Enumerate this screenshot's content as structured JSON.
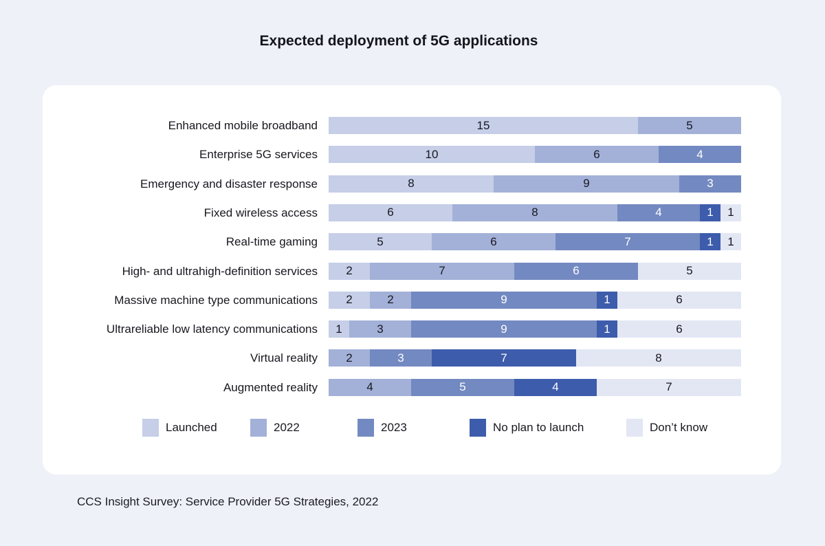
{
  "page": {
    "title": "Expected deployment of 5G applications",
    "source": "CCS Insight Survey: Service Provider 5G Strategies, 2022"
  },
  "colors": {
    "background": "#eff1f8",
    "card": "#ffffff",
    "text": "#17171f"
  },
  "chart_data": {
    "type": "bar",
    "stacked": true,
    "orientation": "horizontal",
    "title": "Expected deployment of 5G applications",
    "x_max": 20,
    "grid": false,
    "legend_position": "bottom",
    "categories": [
      "Enhanced mobile broadband",
      "Enterprise 5G services",
      "Emergency and disaster response",
      "Fixed wireless access",
      "Real-time gaming",
      "High- and ultrahigh-definition services",
      "Massive machine type communications",
      "Ultrareliable low latency communications",
      "Virtual reality",
      "Augmented reality"
    ],
    "series": [
      {
        "name": "Launched",
        "color": "#c6cee8",
        "label_color": "#17171f",
        "values": [
          15,
          10,
          8,
          6,
          5,
          2,
          2,
          1,
          0,
          0
        ]
      },
      {
        "name": "2022",
        "color": "#a3b1d8",
        "label_color": "#17171f",
        "values": [
          5,
          6,
          9,
          8,
          6,
          7,
          2,
          3,
          2,
          4
        ]
      },
      {
        "name": "2023",
        "color": "#7389c1",
        "label_color": "#ffffff",
        "values": [
          0,
          4,
          3,
          4,
          7,
          6,
          9,
          9,
          3,
          5
        ]
      },
      {
        "name": "No plan to launch",
        "color": "#3d5cab",
        "label_color": "#ffffff",
        "values": [
          0,
          0,
          0,
          1,
          1,
          0,
          1,
          1,
          7,
          4
        ]
      },
      {
        "name": "Don’t know",
        "color": "#e3e7f4",
        "label_color": "#17171f",
        "values": [
          0,
          0,
          0,
          1,
          1,
          5,
          6,
          6,
          8,
          7
        ]
      }
    ],
    "source": "CCS Insight Survey: Service Provider 5G Strategies, 2022"
  }
}
